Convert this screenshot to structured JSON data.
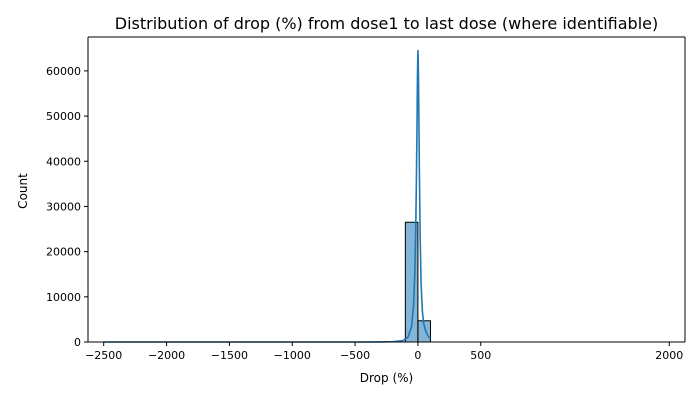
{
  "chart_data": {
    "type": "bar",
    "title": "Distribution of drop (%) from dose1 to last dose (where identifiable)",
    "xlabel": "Drop (%)",
    "ylabel": "Count",
    "xlim": [
      -2625,
      2125
    ],
    "ylim": [
      0,
      67500
    ],
    "xticks": [
      -2500,
      -2000,
      -1500,
      -1000,
      -500,
      0,
      500,
      2000
    ],
    "xtick_labels": [
      "−2500",
      "−2000",
      "−1500",
      "−1000",
      "−500",
      "0",
      "500",
      "2000"
    ],
    "yticks": [
      0,
      10000,
      20000,
      30000,
      40000,
      50000,
      60000
    ],
    "ytick_labels": [
      "0",
      "10000",
      "20000",
      "30000",
      "40000",
      "50000",
      "60000"
    ],
    "bin_width": 100,
    "bins": [
      {
        "x0": -100,
        "x1": 0,
        "count": 26500
      },
      {
        "x0": 0,
        "x1": 100,
        "count": 4700
      }
    ],
    "kde": {
      "x": [
        -2500,
        -2000,
        -1500,
        -1000,
        -500,
        -300,
        -200,
        -120,
        -80,
        -50,
        -35,
        -25,
        -18,
        -12,
        -8,
        -5,
        -3,
        -1,
        0,
        2,
        5,
        8,
        12,
        18,
        25,
        35,
        45,
        60,
        75,
        90,
        100
      ],
      "y": [
        0,
        0,
        0,
        0,
        0,
        20,
        60,
        300,
        1000,
        3500,
        8000,
        15000,
        24000,
        36000,
        46000,
        55000,
        60000,
        63000,
        64500,
        63000,
        57000,
        48000,
        37000,
        23000,
        13000,
        7000,
        4200,
        2600,
        1600,
        1000,
        800
      ]
    },
    "grid": false,
    "colors": {
      "bar_fill": "#1f77b4",
      "bar_fill_opacity": 0.55,
      "bar_edge": "#000000",
      "kde_line": "#1f77b4",
      "axis": "#000000"
    }
  }
}
